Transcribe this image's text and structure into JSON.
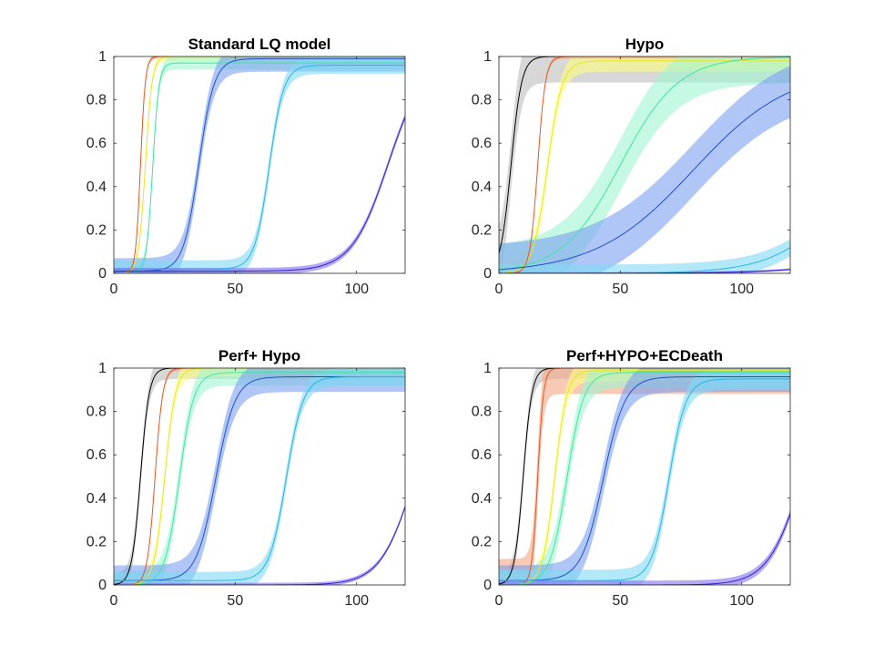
{
  "chart_data": [
    {
      "type": "line",
      "title": "Standard LQ model",
      "xlim": [
        0,
        120
      ],
      "ylim": [
        0,
        1
      ],
      "xticks": [
        0,
        50,
        100
      ],
      "yticks": [
        0,
        0.2,
        0.4,
        0.6,
        0.8,
        1
      ],
      "xtick_labels": [
        "0",
        "50",
        "100"
      ],
      "ytick_labels": [
        "0",
        "0.2",
        "0.4",
        "0.6",
        "0.8",
        "1"
      ],
      "grid": false,
      "series": [
        {
          "color": "#E8541E",
          "band_color": "#F4A582",
          "t50": 11,
          "width": 1.0,
          "top": 1.0,
          "base": 0.0,
          "band_halfwidth": 0.01
        },
        {
          "color": "#E6E620",
          "band_color": "#FFFF80",
          "t50": 13,
          "width": 1.4,
          "top": 1.0,
          "base": 0.0,
          "band_halfwidth": 0.02
        },
        {
          "color": "#3CE6A0",
          "band_color": "#A0F5D0",
          "t50": 16,
          "width": 1.3,
          "top": 0.97,
          "base": 0.0,
          "band_halfwidth": 0.03
        },
        {
          "color": "#2050C8",
          "band_color": "#7AA0F0",
          "t50": 35,
          "width": 3.2,
          "top": 0.99,
          "base": 0.01,
          "band_halfwidth": 0.06
        },
        {
          "color": "#28B4E6",
          "band_color": "#80D8F5",
          "t50": 64,
          "width": 3.0,
          "top": 0.96,
          "base": 0.02,
          "band_halfwidth": 0.04
        },
        {
          "color": "#3020D0",
          "band_color": "#8070F0",
          "t50": 113,
          "width": 7.5,
          "top": 1.0,
          "base": 0.01,
          "band_halfwidth": 0.015
        }
      ]
    },
    {
      "type": "line",
      "title": "Hypo",
      "xlim": [
        0,
        120
      ],
      "ylim": [
        0,
        1
      ],
      "xticks": [
        0,
        50,
        100
      ],
      "yticks": [
        0,
        0.2,
        0.4,
        0.6,
        0.8,
        1
      ],
      "xtick_labels": [
        "0",
        "50",
        "100"
      ],
      "ytick_labels": [
        "0",
        "0.2",
        "0.4",
        "0.6",
        "0.8",
        "1"
      ],
      "grid": false,
      "series": [
        {
          "color": "#000000",
          "band_color": "#BDBDBD",
          "t50": 5,
          "width": 2.2,
          "top": 1.0,
          "base": 0.0,
          "band_halfwidth": 0.12
        },
        {
          "color": "#E6E620",
          "band_color": "#FFFF80",
          "t50": 20,
          "width": 3.0,
          "top": 0.98,
          "base": 0.0,
          "band_halfwidth": 0.05
        },
        {
          "color": "#E8541E",
          "band_color": "#F4A582",
          "t50": 16,
          "width": 1.6,
          "top": 1.0,
          "base": 0.0,
          "band_halfwidth": 0.01
        },
        {
          "color": "#3CE6A0",
          "band_color": "#A0F5D0",
          "t50": 50,
          "width": 12,
          "top": 1.0,
          "base": 0.0,
          "band_halfwidth": 0.12
        },
        {
          "color": "#2050C8",
          "band_color": "#7AA0F0",
          "t50": 80,
          "width": 20,
          "top": 0.95,
          "base": 0.0,
          "band_halfwidth": 0.12
        },
        {
          "color": "#28B4E6",
          "band_color": "#80D8F5",
          "t50": 150,
          "width": 15,
          "top": 1.0,
          "base": 0.0,
          "band_halfwidth": 0.04
        },
        {
          "color": "#3020D0",
          "band_color": "#8070F0",
          "t50": 200,
          "width": 20,
          "top": 1.0,
          "base": 0.0,
          "band_halfwidth": 0.005
        }
      ]
    },
    {
      "type": "line",
      "title": "Perf+ Hypo",
      "xlim": [
        0,
        120
      ],
      "ylim": [
        0,
        1
      ],
      "xticks": [
        0,
        50,
        100
      ],
      "yticks": [
        0,
        0.2,
        0.4,
        0.6,
        0.8,
        1
      ],
      "xtick_labels": [
        "0",
        "50",
        "100"
      ],
      "ytick_labels": [
        "0",
        "0.2",
        "0.4",
        "0.6",
        "0.8",
        "1"
      ],
      "grid": false,
      "series": [
        {
          "color": "#000000",
          "band_color": "#BDBDBD",
          "t50": 11,
          "width": 1.8,
          "top": 1.0,
          "base": 0.0,
          "band_halfwidth": 0.05
        },
        {
          "color": "#E8541E",
          "band_color": "#F4A582",
          "t50": 17,
          "width": 1.6,
          "top": 1.0,
          "base": 0.0,
          "band_halfwidth": 0.01
        },
        {
          "color": "#E6E620",
          "band_color": "#FFFF80",
          "t50": 21,
          "width": 2.2,
          "top": 1.0,
          "base": 0.0,
          "band_halfwidth": 0.04
        },
        {
          "color": "#3CE6A0",
          "band_color": "#A0F5D0",
          "t50": 27,
          "width": 3.0,
          "top": 0.98,
          "base": 0.0,
          "band_halfwidth": 0.06
        },
        {
          "color": "#2050C8",
          "band_color": "#7AA0F0",
          "t50": 42,
          "width": 4.0,
          "top": 0.96,
          "base": 0.02,
          "band_halfwidth": 0.07
        },
        {
          "color": "#28B4E6",
          "band_color": "#80D8F5",
          "t50": 71,
          "width": 3.5,
          "top": 0.96,
          "base": 0.02,
          "band_halfwidth": 0.04
        },
        {
          "color": "#3020D0",
          "band_color": "#8070F0",
          "t50": 124,
          "width": 7.0,
          "top": 1.0,
          "base": 0.0,
          "band_halfwidth": 0.01
        }
      ]
    },
    {
      "type": "line",
      "title": "Perf+HYPO+ECDeath",
      "xlim": [
        0,
        120
      ],
      "ylim": [
        0,
        1
      ],
      "xticks": [
        0,
        50,
        100
      ],
      "yticks": [
        0,
        0.2,
        0.4,
        0.6,
        0.8,
        1
      ],
      "xtick_labels": [
        "0",
        "50",
        "100"
      ],
      "ytick_labels": [
        "0",
        "0.2",
        "0.4",
        "0.6",
        "0.8",
        "1"
      ],
      "grid": false,
      "series": [
        {
          "color": "#000000",
          "band_color": "#BDBDBD",
          "t50": 10,
          "width": 1.8,
          "top": 1.0,
          "base": 0.0,
          "band_halfwidth": 0.05
        },
        {
          "color": "#E8541E",
          "band_color": "#F4A582",
          "t50": 16,
          "width": 1.2,
          "top": 1.0,
          "base": 0.0,
          "band_halfwidth": 0.12
        },
        {
          "color": "#E6E620",
          "band_color": "#FFFF80",
          "t50": 23,
          "width": 2.5,
          "top": 0.99,
          "base": 0.0,
          "band_halfwidth": 0.05
        },
        {
          "color": "#3CE6A0",
          "band_color": "#A0F5D0",
          "t50": 28,
          "width": 3.5,
          "top": 0.98,
          "base": 0.0,
          "band_halfwidth": 0.07
        },
        {
          "color": "#2050C8",
          "band_color": "#7AA0F0",
          "t50": 43,
          "width": 4.5,
          "top": 0.96,
          "base": 0.02,
          "band_halfwidth": 0.07
        },
        {
          "color": "#28B4E6",
          "band_color": "#80D8F5",
          "t50": 70,
          "width": 3.5,
          "top": 0.95,
          "base": 0.02,
          "band_halfwidth": 0.05
        },
        {
          "color": "#3020D0",
          "band_color": "#8070F0",
          "t50": 125,
          "width": 7.0,
          "top": 1.0,
          "base": 0.0,
          "band_halfwidth": 0.02
        }
      ]
    }
  ]
}
